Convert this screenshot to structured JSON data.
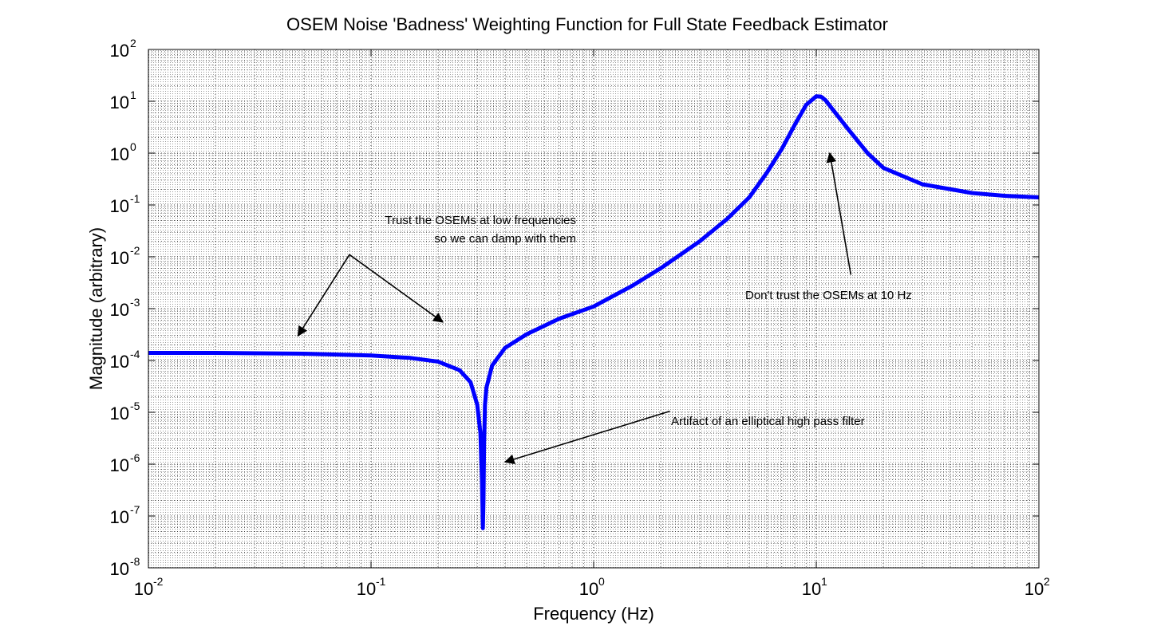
{
  "chart_data": {
    "type": "line",
    "title": "OSEM Noise 'Badness' Weighting Function for Full State Feedback Estimator",
    "xlabel": "Frequency (Hz)",
    "ylabel": "Magnitude (arbitrary)",
    "xscale": "log",
    "yscale": "log",
    "xlim": [
      0.01,
      100
    ],
    "ylim": [
      1e-08,
      100
    ],
    "grid": true,
    "minor_grid": true,
    "legend": "none",
    "colors": {
      "series": "#0000ff",
      "background": "#ffffff",
      "axes": "#000000"
    },
    "x_ticks": [
      {
        "base": "10",
        "exp": "-2",
        "value": 0.01
      },
      {
        "base": "10",
        "exp": "-1",
        "value": 0.1
      },
      {
        "base": "10",
        "exp": "0",
        "value": 1
      },
      {
        "base": "10",
        "exp": "1",
        "value": 10
      },
      {
        "base": "10",
        "exp": "2",
        "value": 100
      }
    ],
    "y_ticks": [
      {
        "base": "10",
        "exp": "-8",
        "value": 1e-08
      },
      {
        "base": "10",
        "exp": "-7",
        "value": 1e-07
      },
      {
        "base": "10",
        "exp": "-6",
        "value": 1e-06
      },
      {
        "base": "10",
        "exp": "-5",
        "value": 1e-05
      },
      {
        "base": "10",
        "exp": "-4",
        "value": 0.0001
      },
      {
        "base": "10",
        "exp": "-3",
        "value": 0.001
      },
      {
        "base": "10",
        "exp": "-2",
        "value": 0.01
      },
      {
        "base": "10",
        "exp": "-1",
        "value": 0.1
      },
      {
        "base": "10",
        "exp": "0",
        "value": 1
      },
      {
        "base": "10",
        "exp": "1",
        "value": 10
      },
      {
        "base": "10",
        "exp": "2",
        "value": 100
      }
    ],
    "series": [
      {
        "x": [
          0.01,
          0.02,
          0.05,
          0.1,
          0.15,
          0.2,
          0.25,
          0.28,
          0.3,
          0.31,
          0.315,
          0.318,
          0.32,
          0.322,
          0.325,
          0.33,
          0.35,
          0.4,
          0.5,
          0.7,
          1.0,
          1.5,
          2,
          3,
          4,
          5,
          6,
          7,
          8,
          9,
          10,
          10.5,
          11,
          12,
          14,
          17,
          20,
          30,
          50,
          70,
          100
        ],
        "y": [
          0.00014,
          0.00014,
          0.000135,
          0.000125,
          0.000112,
          9.5e-05,
          6.5e-05,
          3.8e-05,
          1.4e-05,
          4e-06,
          5e-07,
          5.8e-08,
          2e-07,
          2.5e-06,
          1.4e-05,
          3e-05,
          8e-05,
          0.000175,
          0.00032,
          0.00064,
          0.0011,
          0.0028,
          0.006,
          0.02,
          0.055,
          0.14,
          0.42,
          1.2,
          3.5,
          8.5,
          12.5,
          12.3,
          10.5,
          6.5,
          2.8,
          1.0,
          0.52,
          0.25,
          0.17,
          0.15,
          0.14
        ]
      }
    ],
    "annotations": [
      {
        "lines": [
          "Trust the OSEMs at low frequencies",
          "so we can damp with them"
        ],
        "arrows": [
          {
            "from": [
              0.08,
              0.011
            ],
            "to": [
              0.047,
              0.0003
            ]
          },
          {
            "from": [
              0.08,
              0.011
            ],
            "to": [
              0.21,
              0.00055
            ]
          }
        ]
      },
      {
        "lines": [
          "Artifact of an elliptical high pass filter"
        ],
        "arrows": [
          {
            "from": [
              2.2,
              1.05e-05
            ],
            "to": [
              0.4,
              1.1e-06
            ]
          }
        ]
      },
      {
        "lines": [
          "Don't trust the OSEMs at 10 Hz"
        ],
        "arrows": [
          {
            "from": [
              14.3,
              0.0045
            ],
            "to": [
              11.5,
              1.0
            ]
          }
        ]
      }
    ]
  }
}
